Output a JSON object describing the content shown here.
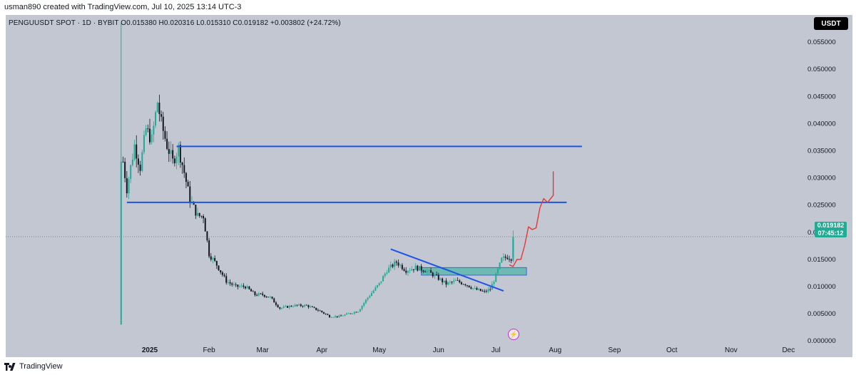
{
  "attribution": "usman890 created with TradingView.com, Jul 10, 2025 13:14 UTC-3",
  "legend": "PENGUUSDT SPOT · 1D · BYBIT  O0.015380  H0.020316  L0.015310  C0.019182  +0.003802 (+24.72%)",
  "currency": "USDT",
  "last_price": "0.019182",
  "countdown": "07:45:12",
  "brand": "TradingView",
  "colors": {
    "up": "#22ab94",
    "down": "#131722",
    "support": "#1e53e5",
    "projection": "#e53935",
    "zone": "#4fb5a8"
  },
  "icons": [
    "lightning-icon",
    "tradingview-logo-icon"
  ],
  "chart_data": {
    "type": "candlestick",
    "title": "",
    "symbol": "PENGUUSDT SPOT",
    "interval": "1D",
    "exchange": "BYBIT",
    "ohlc_last": {
      "open": 0.01538,
      "high": 0.020316,
      "low": 0.01531,
      "close": 0.019182,
      "change": 0.003802,
      "change_pct": 24.72
    },
    "y_ticks": [
      "0.055000",
      "0.050000",
      "0.045000",
      "0.040000",
      "0.035000",
      "0.030000",
      "0.025000",
      "0.020000",
      "0.015000",
      "0.010000",
      "0.005000",
      "0.000000"
    ],
    "ylim": [
      -0.003,
      0.06
    ],
    "x_ticks": [
      "2025",
      "Feb",
      "Mar",
      "Apr",
      "May",
      "Jun",
      "Jul",
      "Aug",
      "Sep",
      "Oct",
      "Nov",
      "Dec"
    ],
    "grid": false,
    "price_path": [
      [
        "2024-12-17",
        0.003
      ],
      [
        "2024-12-17",
        0.058
      ],
      [
        "2024-12-18",
        0.033
      ],
      [
        "2024-12-20",
        0.028
      ],
      [
        "2024-12-24",
        0.036
      ],
      [
        "2024-12-27",
        0.032
      ],
      [
        "2024-12-30",
        0.039
      ],
      [
        "2025-01-02",
        0.037
      ],
      [
        "2025-01-05",
        0.044
      ],
      [
        "2025-01-07",
        0.04
      ],
      [
        "2025-01-10",
        0.036
      ],
      [
        "2025-01-13",
        0.033
      ],
      [
        "2025-01-16",
        0.0355
      ],
      [
        "2025-01-19",
        0.031
      ],
      [
        "2025-01-22",
        0.026
      ],
      [
        "2025-01-26",
        0.023
      ],
      [
        "2025-01-29",
        0.023
      ],
      [
        "2025-02-01",
        0.016
      ],
      [
        "2025-02-05",
        0.014
      ],
      [
        "2025-02-10",
        0.011
      ],
      [
        "2025-02-15",
        0.01
      ],
      [
        "2025-02-20",
        0.01
      ],
      [
        "2025-02-25",
        0.0085
      ],
      [
        "2025-03-01",
        0.0085
      ],
      [
        "2025-03-05",
        0.008
      ],
      [
        "2025-03-10",
        0.006
      ],
      [
        "2025-03-17",
        0.0065
      ],
      [
        "2025-03-24",
        0.0065
      ],
      [
        "2025-03-31",
        0.0055
      ],
      [
        "2025-04-05",
        0.0045
      ],
      [
        "2025-04-10",
        0.0045
      ],
      [
        "2025-04-15",
        0.005
      ],
      [
        "2025-04-20",
        0.0055
      ],
      [
        "2025-04-25",
        0.008
      ],
      [
        "2025-05-01",
        0.0105
      ],
      [
        "2025-05-05",
        0.013
      ],
      [
        "2025-05-10",
        0.0145
      ],
      [
        "2025-05-15",
        0.013
      ],
      [
        "2025-05-20",
        0.0135
      ],
      [
        "2025-05-25",
        0.013
      ],
      [
        "2025-05-30",
        0.012
      ],
      [
        "2025-06-05",
        0.0105
      ],
      [
        "2025-06-10",
        0.011
      ],
      [
        "2025-06-15",
        0.0105
      ],
      [
        "2025-06-20",
        0.0095
      ],
      [
        "2025-06-25",
        0.009
      ],
      [
        "2025-06-28",
        0.0095
      ],
      [
        "2025-07-01",
        0.012
      ],
      [
        "2025-07-04",
        0.015
      ],
      [
        "2025-07-07",
        0.0155
      ],
      [
        "2025-07-09",
        0.0153
      ],
      [
        "2025-07-10",
        0.0192
      ]
    ],
    "annotations": [
      {
        "type": "hline",
        "y": 0.0358,
        "from": "2025-01-15",
        "to": "2025-08-15",
        "color": "support"
      },
      {
        "type": "hline",
        "y": 0.0255,
        "from": "2024-12-20",
        "to": "2025-08-07",
        "color": "support"
      },
      {
        "type": "trendline",
        "from": [
          "2025-05-07",
          0.0169
        ],
        "to": [
          "2025-07-05",
          0.0092
        ],
        "color": "support"
      },
      {
        "type": "zone",
        "y_low": 0.0121,
        "y_high": 0.0135,
        "from": "2025-05-23",
        "to": "2025-07-17",
        "color": "zone"
      },
      {
        "type": "projection",
        "color": "projection",
        "points": [
          [
            "2025-07-08",
            0.014
          ],
          [
            "2025-07-10",
            0.0137
          ],
          [
            "2025-07-12",
            0.015
          ],
          [
            "2025-07-14",
            0.015
          ],
          [
            "2025-07-16",
            0.0175
          ],
          [
            "2025-07-18",
            0.021
          ],
          [
            "2025-07-20",
            0.0205
          ],
          [
            "2025-07-22",
            0.0208
          ],
          [
            "2025-07-24",
            0.0245
          ],
          [
            "2025-07-26",
            0.0262
          ],
          [
            "2025-07-28",
            0.0255
          ],
          [
            "2025-07-31",
            0.0268
          ],
          [
            "2025-07-31",
            0.0312
          ]
        ]
      }
    ]
  }
}
